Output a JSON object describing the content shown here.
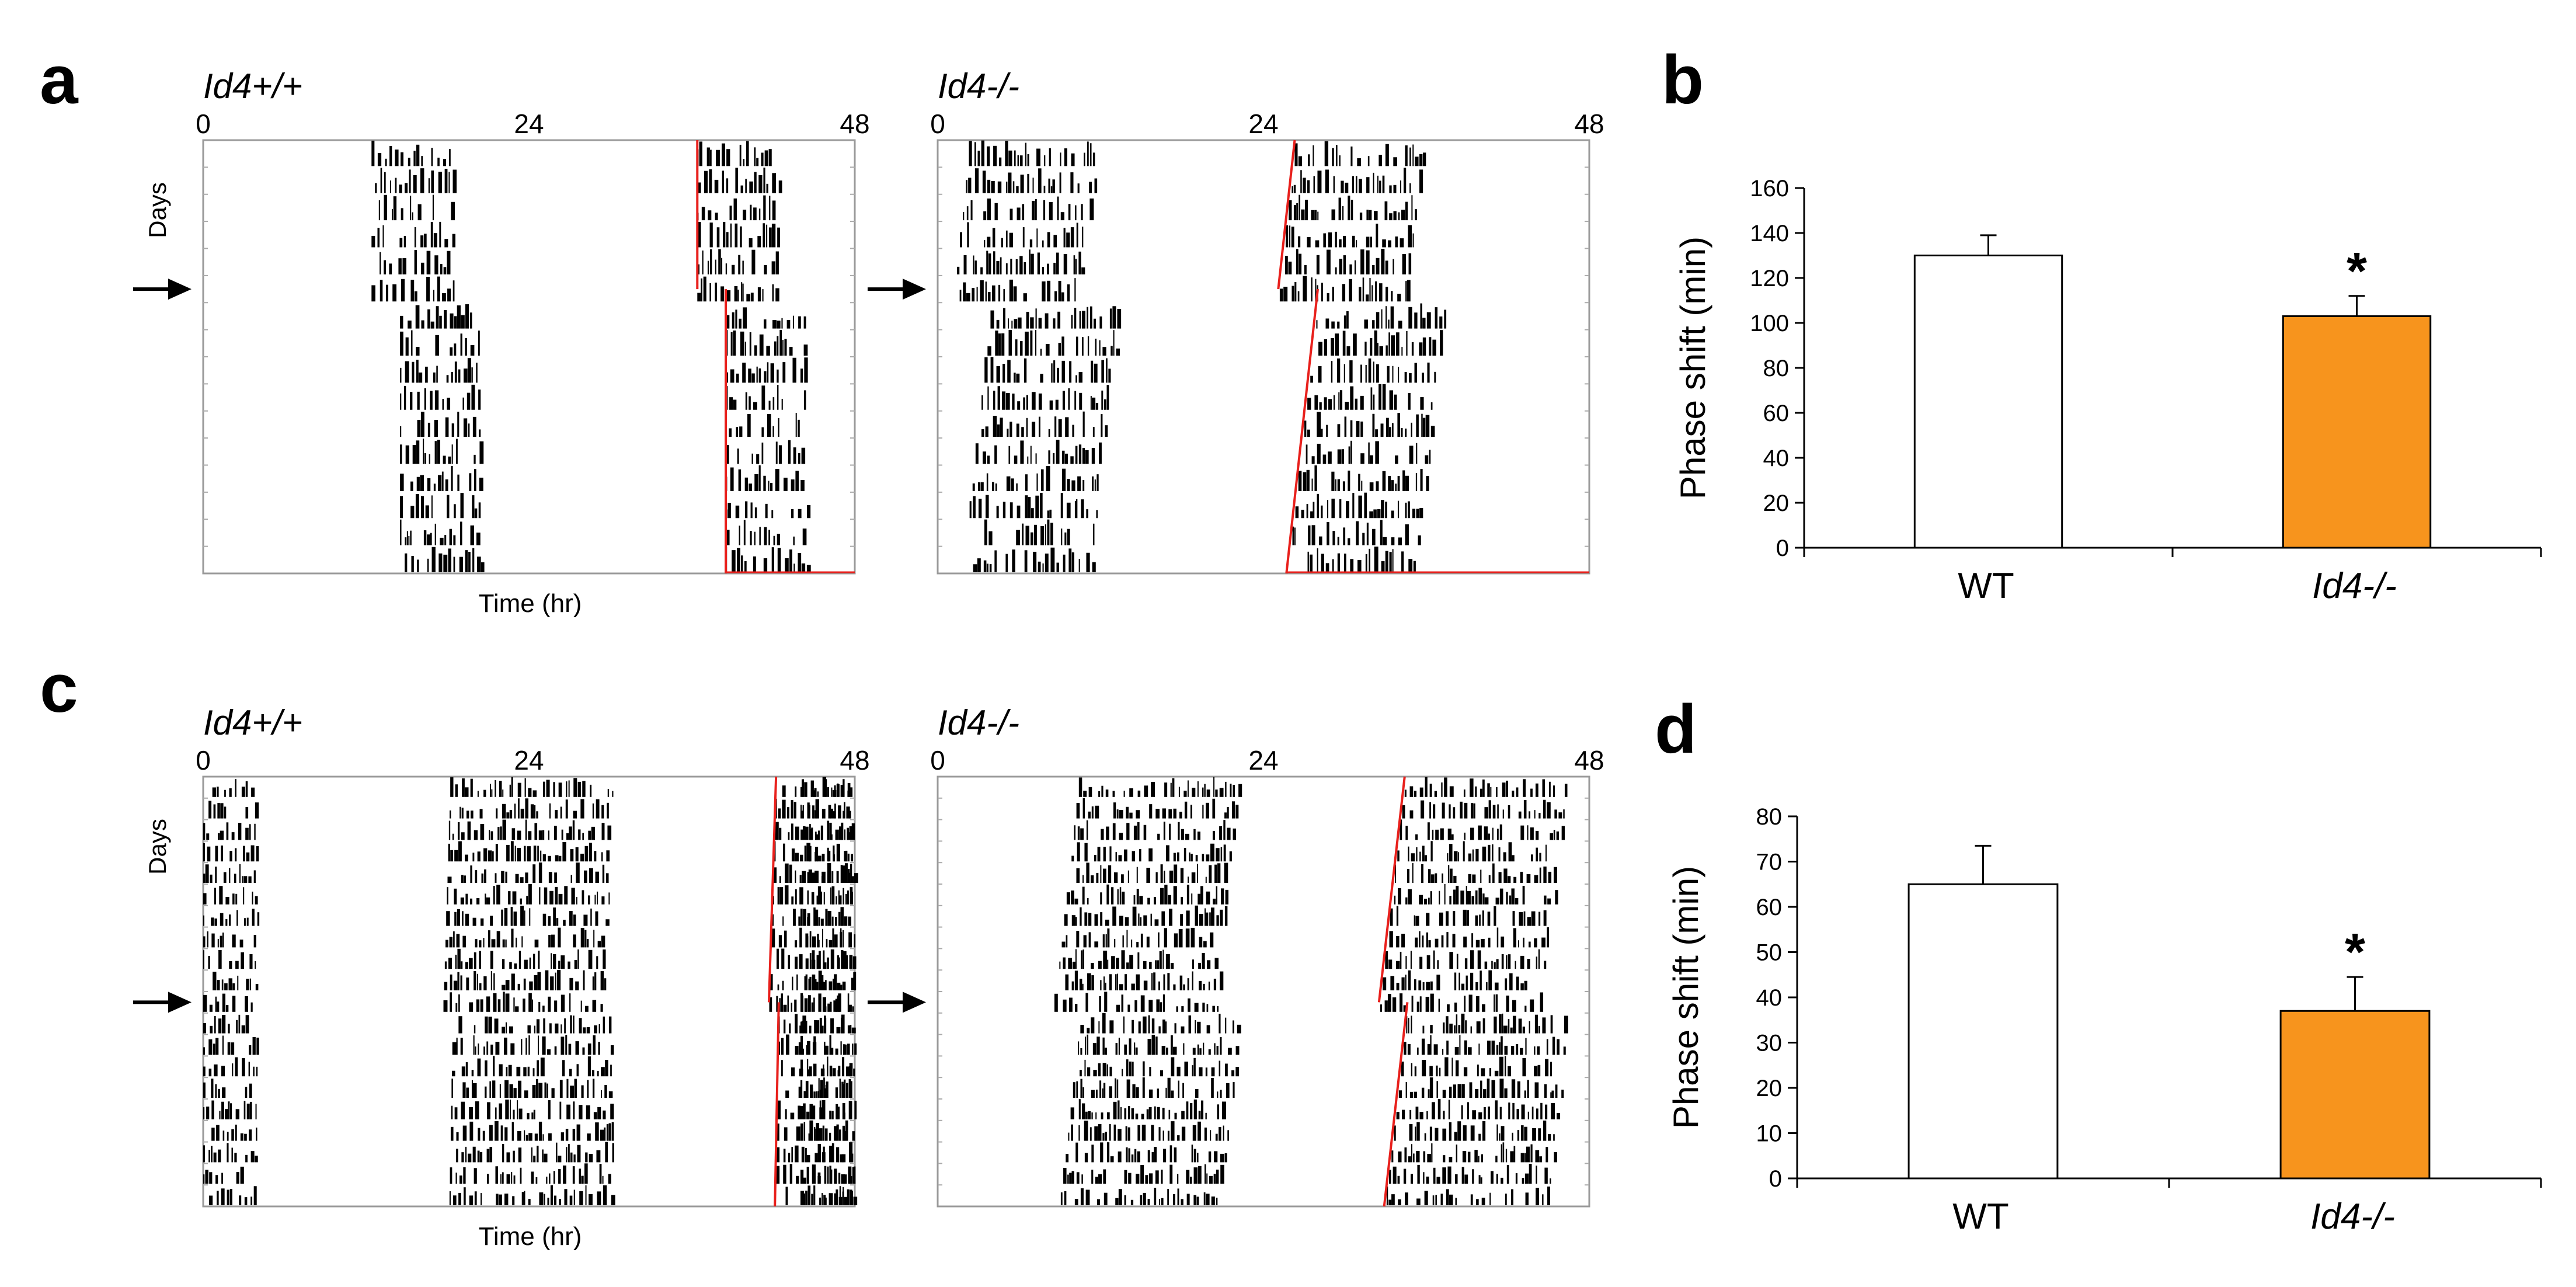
{
  "figure": {
    "panel_labels": [
      "a",
      "b",
      "c",
      "d"
    ]
  },
  "actograms": [
    {
      "panel": "a",
      "title": "Id4+/+",
      "x_ticks": [
        "0",
        "24",
        "48"
      ],
      "ylabel": "Days",
      "xlabel": "Time (hr)",
      "arrow_day": 5.5,
      "days": 16,
      "onset_before": 12.4,
      "slope_before": 0,
      "onset_after": 14.5,
      "slope_after": 0,
      "bout_hours": 6.0,
      "extra_block": null
    },
    {
      "panel": "a",
      "title": "Id4-/-",
      "x_ticks": [
        "0",
        "24",
        "48"
      ],
      "ylabel": "",
      "xlabel": "",
      "arrow_day": 5.5,
      "days": 16,
      "onset_before": 2.3,
      "slope_before": -0.22,
      "onset_after": 4.0,
      "slope_after": -0.22,
      "bout_hours": 9.5,
      "extra_block": null
    },
    {
      "panel": "c",
      "title": "Id4+/+",
      "x_ticks": [
        "0",
        "24",
        "48"
      ],
      "ylabel": "Days",
      "xlabel": "Time (hr)",
      "arrow_day": 10.5,
      "days": 20,
      "onset_before": 18.2,
      "slope_before": -0.05,
      "onset_after": 18.4,
      "slope_after": -0.03,
      "bout_hours": 12.0,
      "extra_block": 4.0
    },
    {
      "panel": "c",
      "title": "Id4-/-",
      "x_ticks": [
        "0",
        "24",
        "48"
      ],
      "ylabel": "",
      "xlabel": "",
      "arrow_day": 10.5,
      "days": 20,
      "onset_before": 10.4,
      "slope_before": -0.18,
      "onset_after": 10.6,
      "slope_after": -0.18,
      "bout_hours": 12.0,
      "extra_block": null
    }
  ],
  "chart_data": [
    {
      "panel": "b",
      "type": "bar",
      "categories": [
        "WT",
        "Id4-/-"
      ],
      "values": [
        130,
        103
      ],
      "errors": [
        9,
        9
      ],
      "colors": [
        "#ffffff",
        "#f7941d"
      ],
      "significance": [
        "",
        "*"
      ],
      "ylabel": "Phase shift (min)",
      "ylim": [
        0,
        160
      ],
      "y_ticks": [
        "0",
        "20",
        "40",
        "60",
        "80",
        "100",
        "120",
        "140",
        "160"
      ],
      "grid": false
    },
    {
      "panel": "d",
      "type": "bar",
      "categories": [
        "WT",
        "Id4-/-"
      ],
      "values": [
        65,
        37
      ],
      "errors": [
        8.5,
        7.5
      ],
      "colors": [
        "#ffffff",
        "#f7941d"
      ],
      "significance": [
        "",
        "*"
      ],
      "ylabel": "Phase shift (min)",
      "ylim": [
        0,
        80
      ],
      "y_ticks": [
        "0",
        "10",
        "20",
        "30",
        "40",
        "50",
        "60",
        "70",
        "80"
      ],
      "grid": false
    }
  ]
}
